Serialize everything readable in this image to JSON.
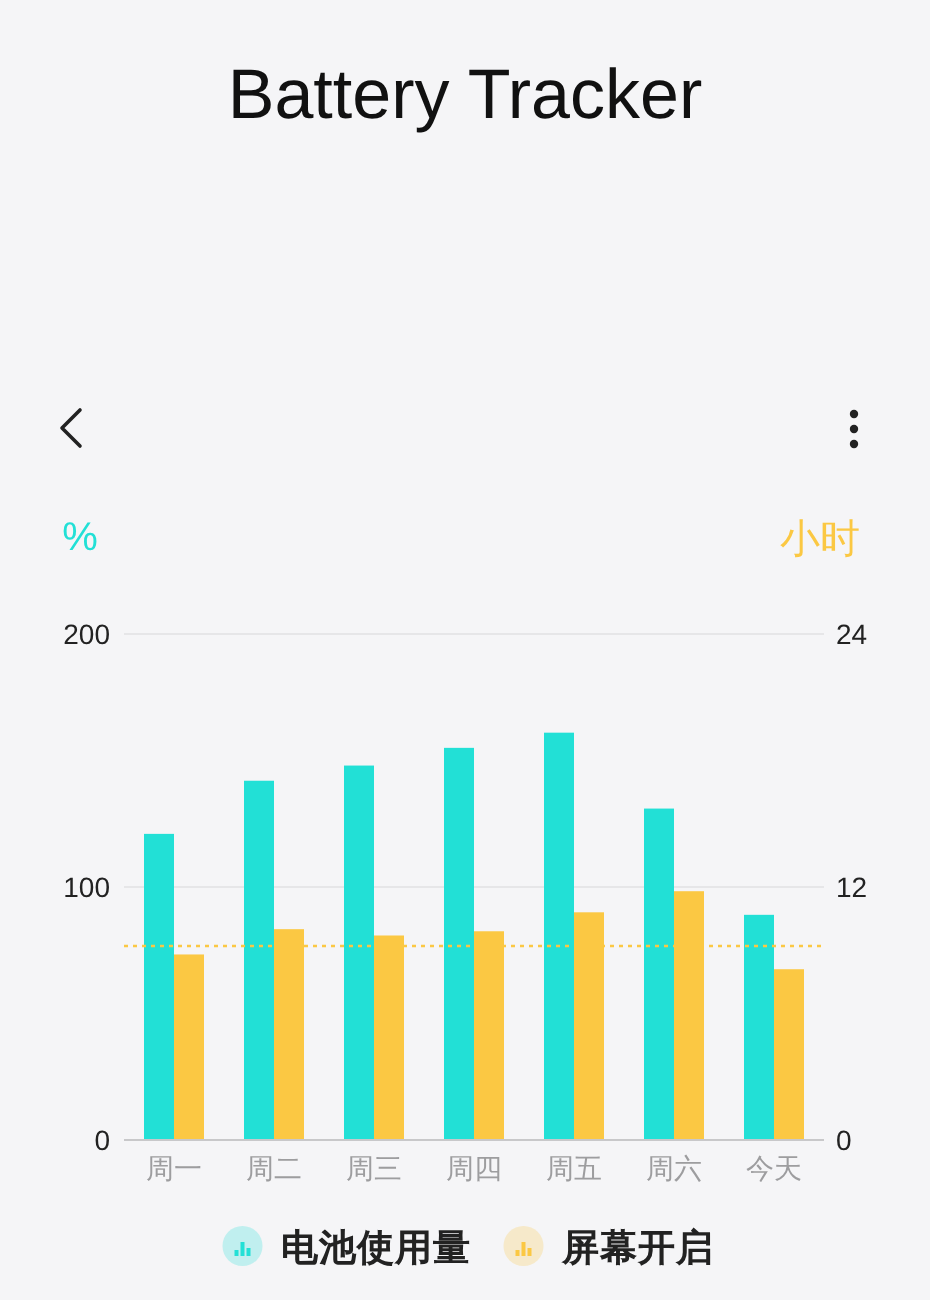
{
  "chart_data": {
    "type": "bar",
    "title": "Battery Tracker",
    "ylabel": "%",
    "y2label": "小时",
    "categories": [
      "周一",
      "周二",
      "周三",
      "周四",
      "周五",
      "周六",
      "今天"
    ],
    "series": [
      {
        "name": "电池使用量",
        "color": "#22e0d6",
        "values": [
          121,
          142,
          148,
          155,
          161,
          131,
          89
        ]
      },
      {
        "name": "屏幕开启",
        "color": "#fbc843",
        "axis": "y2",
        "values": [
          8.8,
          10.0,
          9.7,
          9.9,
          10.8,
          11.8,
          8.1
        ]
      }
    ],
    "ylim": [
      0,
      200
    ],
    "yticks": [
      0,
      100,
      200
    ],
    "y2lim": [
      0,
      24
    ],
    "y2ticks": [
      0,
      12,
      24
    ],
    "ref_lines": [
      {
        "axis": "y2",
        "value": 9.2,
        "color": "#fbc843",
        "line_style": "dotted"
      }
    ],
    "grid": "y",
    "legend": "bottom"
  }
}
